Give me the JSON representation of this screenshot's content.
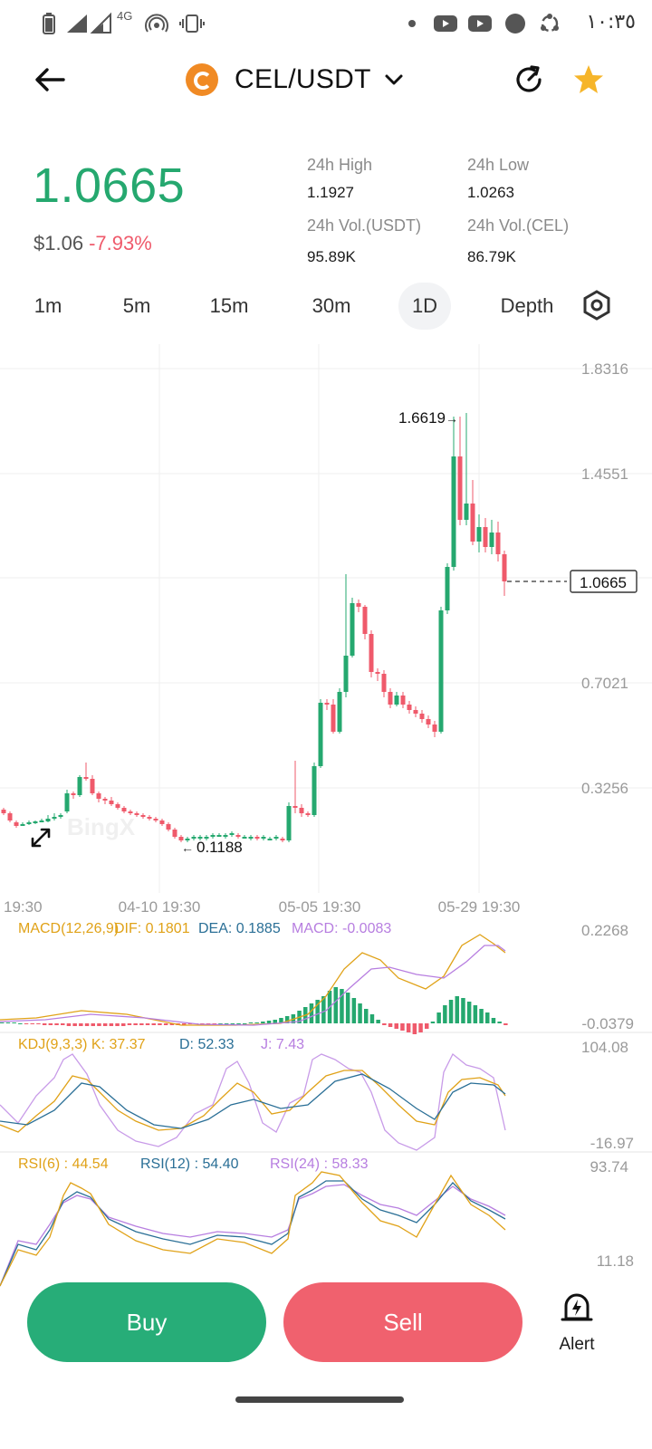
{
  "status_bar": {
    "time": "١٠:٣٥",
    "network_label": "4G",
    "icons": [
      "battery-icon",
      "signal-icon",
      "signal-icon",
      "hotspot-icon",
      "vibrate-icon",
      "dot-icon",
      "youtube-icon",
      "youtube-icon",
      "record-icon",
      "sync-icon"
    ]
  },
  "header": {
    "pair": "CEL/USDT",
    "back_icon": "arrow-left-icon",
    "refresh_icon": "refresh-icon",
    "favorite_icon": "star-icon",
    "accent": "#f6b52a"
  },
  "summary": {
    "price": "1.0665",
    "usd_price": "$1.06",
    "change": "-7.93%",
    "stats": [
      {
        "label": "24h High",
        "value": "1.1927"
      },
      {
        "label": "24h Low",
        "value": "1.0263"
      },
      {
        "label": "24h Vol.(USDT)",
        "value": "95.89K"
      },
      {
        "label": "24h Vol.(CEL)",
        "value": "86.79K"
      }
    ],
    "colors": {
      "up": "#25a86f",
      "down": "#ef5a6b"
    }
  },
  "intervals": {
    "tabs": [
      "1m",
      "5m",
      "15m",
      "30m",
      "1D",
      "Depth"
    ],
    "active": "1D",
    "settings_icon": "hexagon-settings-icon"
  },
  "chart": {
    "watermark": "BingX",
    "price_axis": [
      "1.8316",
      "1.4551",
      "0.7021",
      "0.3256"
    ],
    "last_price_tag": "1.0665",
    "max_label": "1.6619",
    "min_label": "0.1188",
    "time_axis": [
      "19:30",
      "04-10 19:30",
      "05-05 19:30",
      "05-29 19:30"
    ],
    "expand_icon": "expand-icon",
    "macd": {
      "label": "MACD(12,26,9)",
      "dif": "DIF: 0.1801",
      "dea": "DEA: 0.1885",
      "macd": "MACD: -0.0083",
      "axis_top": "0.2268",
      "axis_bottom": "-0.0379"
    },
    "kdj": {
      "label": "KDJ(9,3,3) K: 37.37",
      "d": "D: 52.33",
      "j": "J: 7.43",
      "axis_top": "104.08",
      "axis_bottom": "-16.97"
    },
    "rsi": {
      "rsi6": "RSI(6) : 44.54",
      "rsi12": "RSI(12) : 54.40",
      "rsi24": "RSI(24) : 58.33",
      "axis_top": "93.74",
      "axis_bottom": "11.18"
    }
  },
  "actions": {
    "buy": "Buy",
    "sell": "Sell",
    "alert": "Alert",
    "alert_icon": "bell-alert-icon",
    "buy_color": "#27ad78",
    "sell_color": "#f0616e"
  }
}
